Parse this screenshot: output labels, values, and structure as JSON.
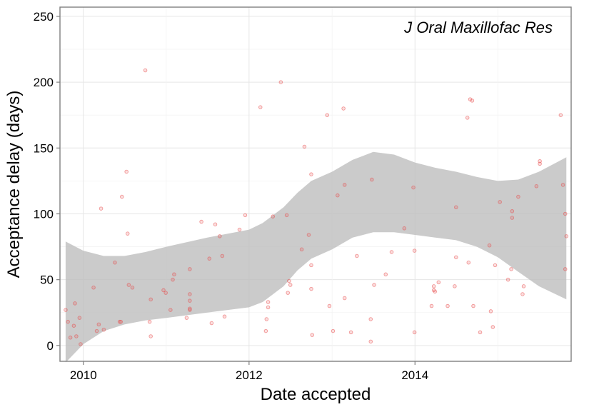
{
  "chart_data": {
    "type": "scatter",
    "title": "",
    "annotation": "J Oral Maxillofac Res",
    "xlabel": "Date accepted",
    "ylabel": "Acceptance delay (days)",
    "x_ticks": [
      "2010",
      "2012",
      "2014"
    ],
    "y_ticks": [
      0,
      50,
      100,
      150,
      200,
      250
    ],
    "xlim": [
      "2009-09-20",
      "2015-11-20"
    ],
    "ylim": [
      -12,
      257
    ],
    "grid": true,
    "point_color": "#e84a4a",
    "band_color": "#bdbdbd",
    "points": [
      {
        "x": "2009-10-15",
        "y": 27
      },
      {
        "x": "2009-10-25",
        "y": 18
      },
      {
        "x": "2009-11-05",
        "y": 6
      },
      {
        "x": "2009-11-20",
        "y": 15
      },
      {
        "x": "2009-11-25",
        "y": 32
      },
      {
        "x": "2009-12-01",
        "y": 7
      },
      {
        "x": "2009-12-15",
        "y": 21
      },
      {
        "x": "2009-12-20",
        "y": 1
      },
      {
        "x": "2010-02-15",
        "y": 44
      },
      {
        "x": "2010-03-01",
        "y": 11
      },
      {
        "x": "2010-03-10",
        "y": 16
      },
      {
        "x": "2010-03-20",
        "y": 104
      },
      {
        "x": "2010-04-01",
        "y": 12
      },
      {
        "x": "2010-05-20",
        "y": 63
      },
      {
        "x": "2010-06-10",
        "y": 18
      },
      {
        "x": "2010-06-15",
        "y": 18
      },
      {
        "x": "2010-06-20",
        "y": 113
      },
      {
        "x": "2010-07-10",
        "y": 132
      },
      {
        "x": "2010-07-15",
        "y": 85
      },
      {
        "x": "2010-07-20",
        "y": 46
      },
      {
        "x": "2010-08-05",
        "y": 44
      },
      {
        "x": "2010-10-01",
        "y": 209
      },
      {
        "x": "2010-10-20",
        "y": 18
      },
      {
        "x": "2010-10-25",
        "y": 35
      },
      {
        "x": "2010-10-25",
        "y": 7
      },
      {
        "x": "2010-12-20",
        "y": 42
      },
      {
        "x": "2010-12-30",
        "y": 40
      },
      {
        "x": "2011-01-20",
        "y": 27
      },
      {
        "x": "2011-01-30",
        "y": 50
      },
      {
        "x": "2011-02-05",
        "y": 54
      },
      {
        "x": "2011-04-01",
        "y": 21
      },
      {
        "x": "2011-04-15",
        "y": 58
      },
      {
        "x": "2011-04-15",
        "y": 39
      },
      {
        "x": "2011-04-15",
        "y": 34
      },
      {
        "x": "2011-04-15",
        "y": 28
      },
      {
        "x": "2011-04-15",
        "y": 27
      },
      {
        "x": "2011-06-05",
        "y": 94
      },
      {
        "x": "2011-07-10",
        "y": 66
      },
      {
        "x": "2011-07-20",
        "y": 17
      },
      {
        "x": "2011-08-05",
        "y": 92
      },
      {
        "x": "2011-08-25",
        "y": 83
      },
      {
        "x": "2011-09-05",
        "y": 68
      },
      {
        "x": "2011-09-15",
        "y": 22
      },
      {
        "x": "2011-11-20",
        "y": 88
      },
      {
        "x": "2011-12-15",
        "y": 99
      },
      {
        "x": "2012-02-20",
        "y": 181
      },
      {
        "x": "2012-03-15",
        "y": 11
      },
      {
        "x": "2012-03-18",
        "y": 20
      },
      {
        "x": "2012-03-25",
        "y": 33
      },
      {
        "x": "2012-03-25",
        "y": 29
      },
      {
        "x": "2012-04-15",
        "y": 98
      },
      {
        "x": "2012-05-20",
        "y": 200
      },
      {
        "x": "2012-06-15",
        "y": 99
      },
      {
        "x": "2012-06-20",
        "y": 40
      },
      {
        "x": "2012-06-25",
        "y": 49
      },
      {
        "x": "2012-07-01",
        "y": 46
      },
      {
        "x": "2012-08-20",
        "y": 73
      },
      {
        "x": "2012-09-01",
        "y": 151
      },
      {
        "x": "2012-09-20",
        "y": 84
      },
      {
        "x": "2012-10-01",
        "y": 130
      },
      {
        "x": "2012-10-01",
        "y": 61
      },
      {
        "x": "2012-10-01",
        "y": 43
      },
      {
        "x": "2012-10-05",
        "y": 8
      },
      {
        "x": "2012-12-10",
        "y": 175
      },
      {
        "x": "2012-12-20",
        "y": 30
      },
      {
        "x": "2013-01-05",
        "y": 11
      },
      {
        "x": "2013-01-25",
        "y": 114
      },
      {
        "x": "2013-02-20",
        "y": 180
      },
      {
        "x": "2013-02-25",
        "y": 36
      },
      {
        "x": "2013-02-25",
        "y": 122
      },
      {
        "x": "2013-03-25",
        "y": 10
      },
      {
        "x": "2013-04-20",
        "y": 68
      },
      {
        "x": "2013-06-20",
        "y": 20
      },
      {
        "x": "2013-06-20",
        "y": 3
      },
      {
        "x": "2013-06-25",
        "y": 126
      },
      {
        "x": "2013-07-05",
        "y": 46
      },
      {
        "x": "2013-08-25",
        "y": 54
      },
      {
        "x": "2013-09-20",
        "y": 71
      },
      {
        "x": "2013-11-15",
        "y": 89
      },
      {
        "x": "2013-12-25",
        "y": 120
      },
      {
        "x": "2013-12-30",
        "y": 72
      },
      {
        "x": "2013-12-30",
        "y": 10
      },
      {
        "x": "2014-03-15",
        "y": 30
      },
      {
        "x": "2014-03-25",
        "y": 42
      },
      {
        "x": "2014-03-25",
        "y": 45
      },
      {
        "x": "2014-03-30",
        "y": 41
      },
      {
        "x": "2014-04-15",
        "y": 48
      },
      {
        "x": "2014-05-25",
        "y": 30
      },
      {
        "x": "2014-06-25",
        "y": 45
      },
      {
        "x": "2014-07-01",
        "y": 105
      },
      {
        "x": "2014-07-01",
        "y": 67
      },
      {
        "x": "2014-08-20",
        "y": 173
      },
      {
        "x": "2014-08-25",
        "y": 63
      },
      {
        "x": "2014-09-01",
        "y": 187
      },
      {
        "x": "2014-09-10",
        "y": 186
      },
      {
        "x": "2014-09-15",
        "y": 30
      },
      {
        "x": "2014-10-15",
        "y": 10
      },
      {
        "x": "2014-11-25",
        "y": 76
      },
      {
        "x": "2014-12-01",
        "y": 26
      },
      {
        "x": "2014-12-10",
        "y": 14
      },
      {
        "x": "2014-12-20",
        "y": 61
      },
      {
        "x": "2015-01-10",
        "y": 109
      },
      {
        "x": "2015-02-15",
        "y": 50
      },
      {
        "x": "2015-03-01",
        "y": 58
      },
      {
        "x": "2015-03-05",
        "y": 102
      },
      {
        "x": "2015-03-05",
        "y": 97
      },
      {
        "x": "2015-04-01",
        "y": 113
      },
      {
        "x": "2015-04-20",
        "y": 39
      },
      {
        "x": "2015-04-25",
        "y": 45
      },
      {
        "x": "2015-06-20",
        "y": 121
      },
      {
        "x": "2015-07-05",
        "y": 140
      },
      {
        "x": "2015-07-05",
        "y": 138
      },
      {
        "x": "2015-10-05",
        "y": 175
      },
      {
        "x": "2015-10-15",
        "y": 122
      },
      {
        "x": "2015-10-25",
        "y": 100
      },
      {
        "x": "2015-10-25",
        "y": 58
      },
      {
        "x": "2015-10-30",
        "y": 83
      }
    ],
    "confidence_band": [
      {
        "x": "2009-10-15",
        "upper": 79,
        "lower": -13
      },
      {
        "x": "2010-01-01",
        "upper": 72,
        "lower": 1
      },
      {
        "x": "2010-04-01",
        "upper": 68,
        "lower": 11
      },
      {
        "x": "2010-07-01",
        "upper": 68,
        "lower": 16
      },
      {
        "x": "2010-10-01",
        "upper": 71,
        "lower": 19
      },
      {
        "x": "2011-01-01",
        "upper": 75,
        "lower": 21
      },
      {
        "x": "2011-07-01",
        "upper": 82,
        "lower": 25
      },
      {
        "x": "2012-01-01",
        "upper": 88,
        "lower": 29
      },
      {
        "x": "2012-03-01",
        "upper": 93,
        "lower": 33
      },
      {
        "x": "2012-06-01",
        "upper": 105,
        "lower": 45
      },
      {
        "x": "2012-08-01",
        "upper": 116,
        "lower": 57
      },
      {
        "x": "2012-10-01",
        "upper": 125,
        "lower": 66
      },
      {
        "x": "2013-01-01",
        "upper": 132,
        "lower": 73
      },
      {
        "x": "2013-04-01",
        "upper": 141,
        "lower": 82
      },
      {
        "x": "2013-07-01",
        "upper": 147,
        "lower": 86
      },
      {
        "x": "2013-10-01",
        "upper": 145,
        "lower": 86
      },
      {
        "x": "2014-01-01",
        "upper": 139,
        "lower": 84
      },
      {
        "x": "2014-04-01",
        "upper": 135,
        "lower": 82
      },
      {
        "x": "2014-07-01",
        "upper": 132,
        "lower": 80
      },
      {
        "x": "2014-10-01",
        "upper": 128,
        "lower": 75
      },
      {
        "x": "2015-01-01",
        "upper": 125,
        "lower": 67
      },
      {
        "x": "2015-04-01",
        "upper": 126,
        "lower": 56
      },
      {
        "x": "2015-07-01",
        "upper": 132,
        "lower": 45
      },
      {
        "x": "2015-10-30",
        "upper": 143,
        "lower": 35
      }
    ]
  }
}
